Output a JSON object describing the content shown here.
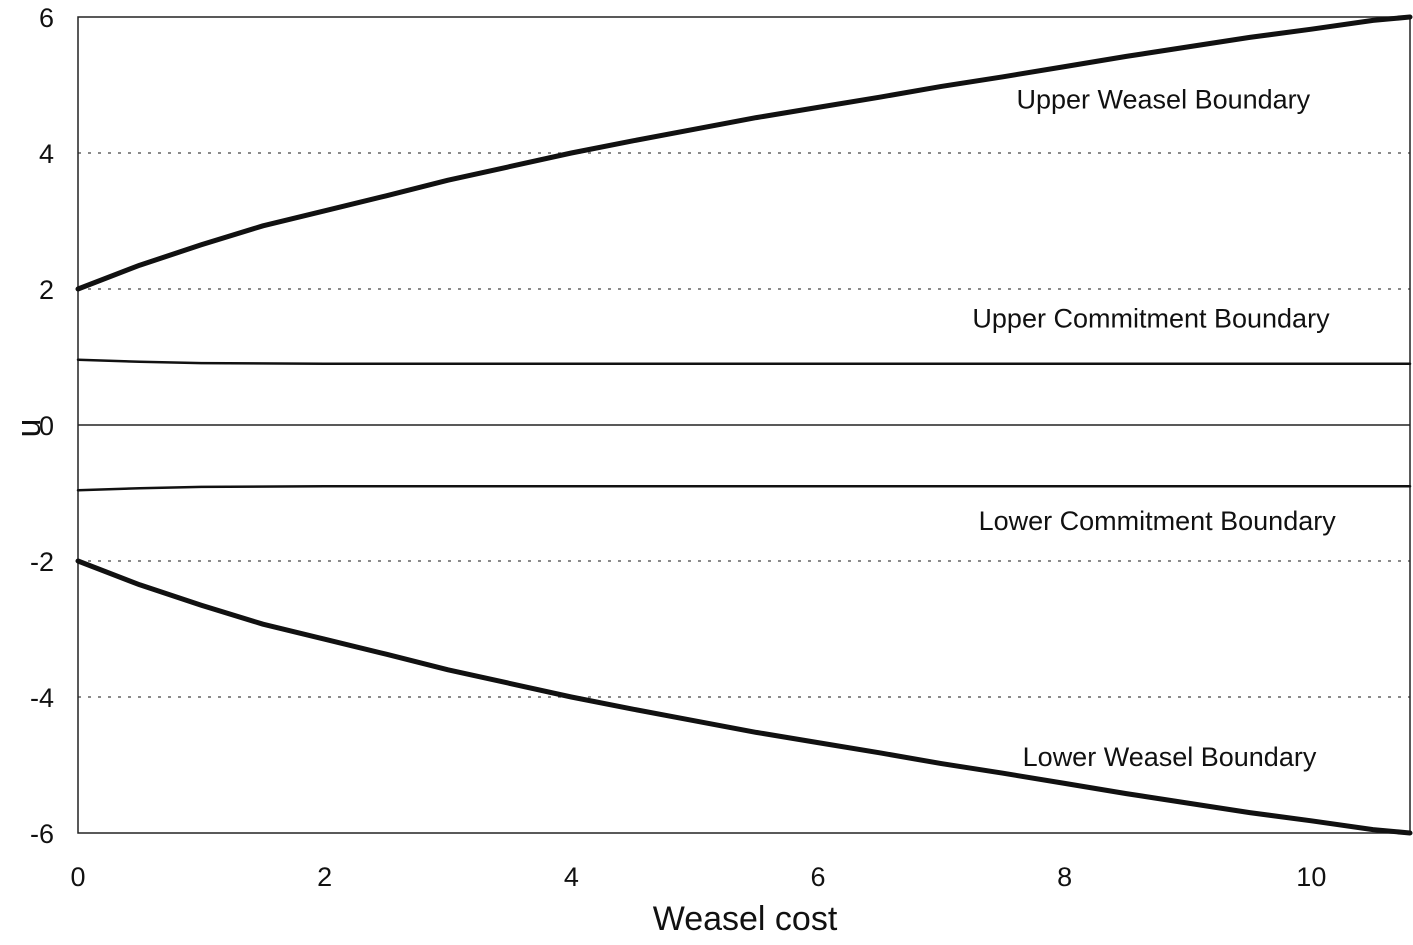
{
  "chart_data": {
    "type": "line",
    "xlabel": "Weasel cost",
    "ylabel": "u",
    "xlim": [
      0,
      10.8
    ],
    "ylim": [
      -6,
      6
    ],
    "x_ticks": [
      0,
      2,
      4,
      6,
      8,
      10
    ],
    "y_ticks": [
      -6,
      -4,
      -2,
      0,
      2,
      4,
      6
    ],
    "grid": "horizontal dotted lines at y=±2 and ±4; solid line at y=0",
    "series": [
      {
        "name": "Upper Weasel Boundary",
        "x": [
          0,
          0.5,
          1,
          1.5,
          2,
          2.5,
          3,
          3.5,
          4,
          4.5,
          5,
          5.5,
          6,
          6.5,
          7,
          7.5,
          8,
          8.5,
          9,
          9.5,
          10,
          10.5,
          10.8
        ],
        "y": [
          2.0,
          2.35,
          2.65,
          2.93,
          3.15,
          3.37,
          3.6,
          3.8,
          4.0,
          4.18,
          4.35,
          4.52,
          4.67,
          4.82,
          4.98,
          5.12,
          5.27,
          5.42,
          5.56,
          5.7,
          5.82,
          5.95,
          6.0
        ],
        "label_x": 8.8,
        "label_y": 4.8,
        "weight": "thick"
      },
      {
        "name": "Upper Commitment Boundary",
        "x": [
          0,
          0.5,
          1,
          2,
          4,
          6,
          8,
          10,
          10.8
        ],
        "y": [
          0.96,
          0.93,
          0.91,
          0.9,
          0.9,
          0.9,
          0.9,
          0.9,
          0.9
        ],
        "label_x": 8.7,
        "label_y": 1.58,
        "weight": "thin"
      },
      {
        "name": "Lower Commitment Boundary",
        "x": [
          0,
          0.5,
          1,
          2,
          4,
          6,
          8,
          10,
          10.8
        ],
        "y": [
          -0.96,
          -0.93,
          -0.91,
          -0.9,
          -0.9,
          -0.9,
          -0.9,
          -0.9,
          -0.9
        ],
        "label_x": 8.75,
        "label_y": -1.4,
        "weight": "thin"
      },
      {
        "name": "Lower Weasel Boundary",
        "x": [
          0,
          0.5,
          1,
          1.5,
          2,
          2.5,
          3,
          3.5,
          4,
          4.5,
          5,
          5.5,
          6,
          6.5,
          7,
          7.5,
          8,
          8.5,
          9,
          9.5,
          10,
          10.5,
          10.8
        ],
        "y": [
          -2.0,
          -2.35,
          -2.65,
          -2.93,
          -3.15,
          -3.37,
          -3.6,
          -3.8,
          -4.0,
          -4.18,
          -4.35,
          -4.52,
          -4.67,
          -4.82,
          -4.98,
          -5.12,
          -5.27,
          -5.42,
          -5.56,
          -5.7,
          -5.82,
          -5.95,
          -6.0
        ],
        "label_x": 8.85,
        "label_y": -4.87,
        "weight": "thick"
      }
    ]
  }
}
